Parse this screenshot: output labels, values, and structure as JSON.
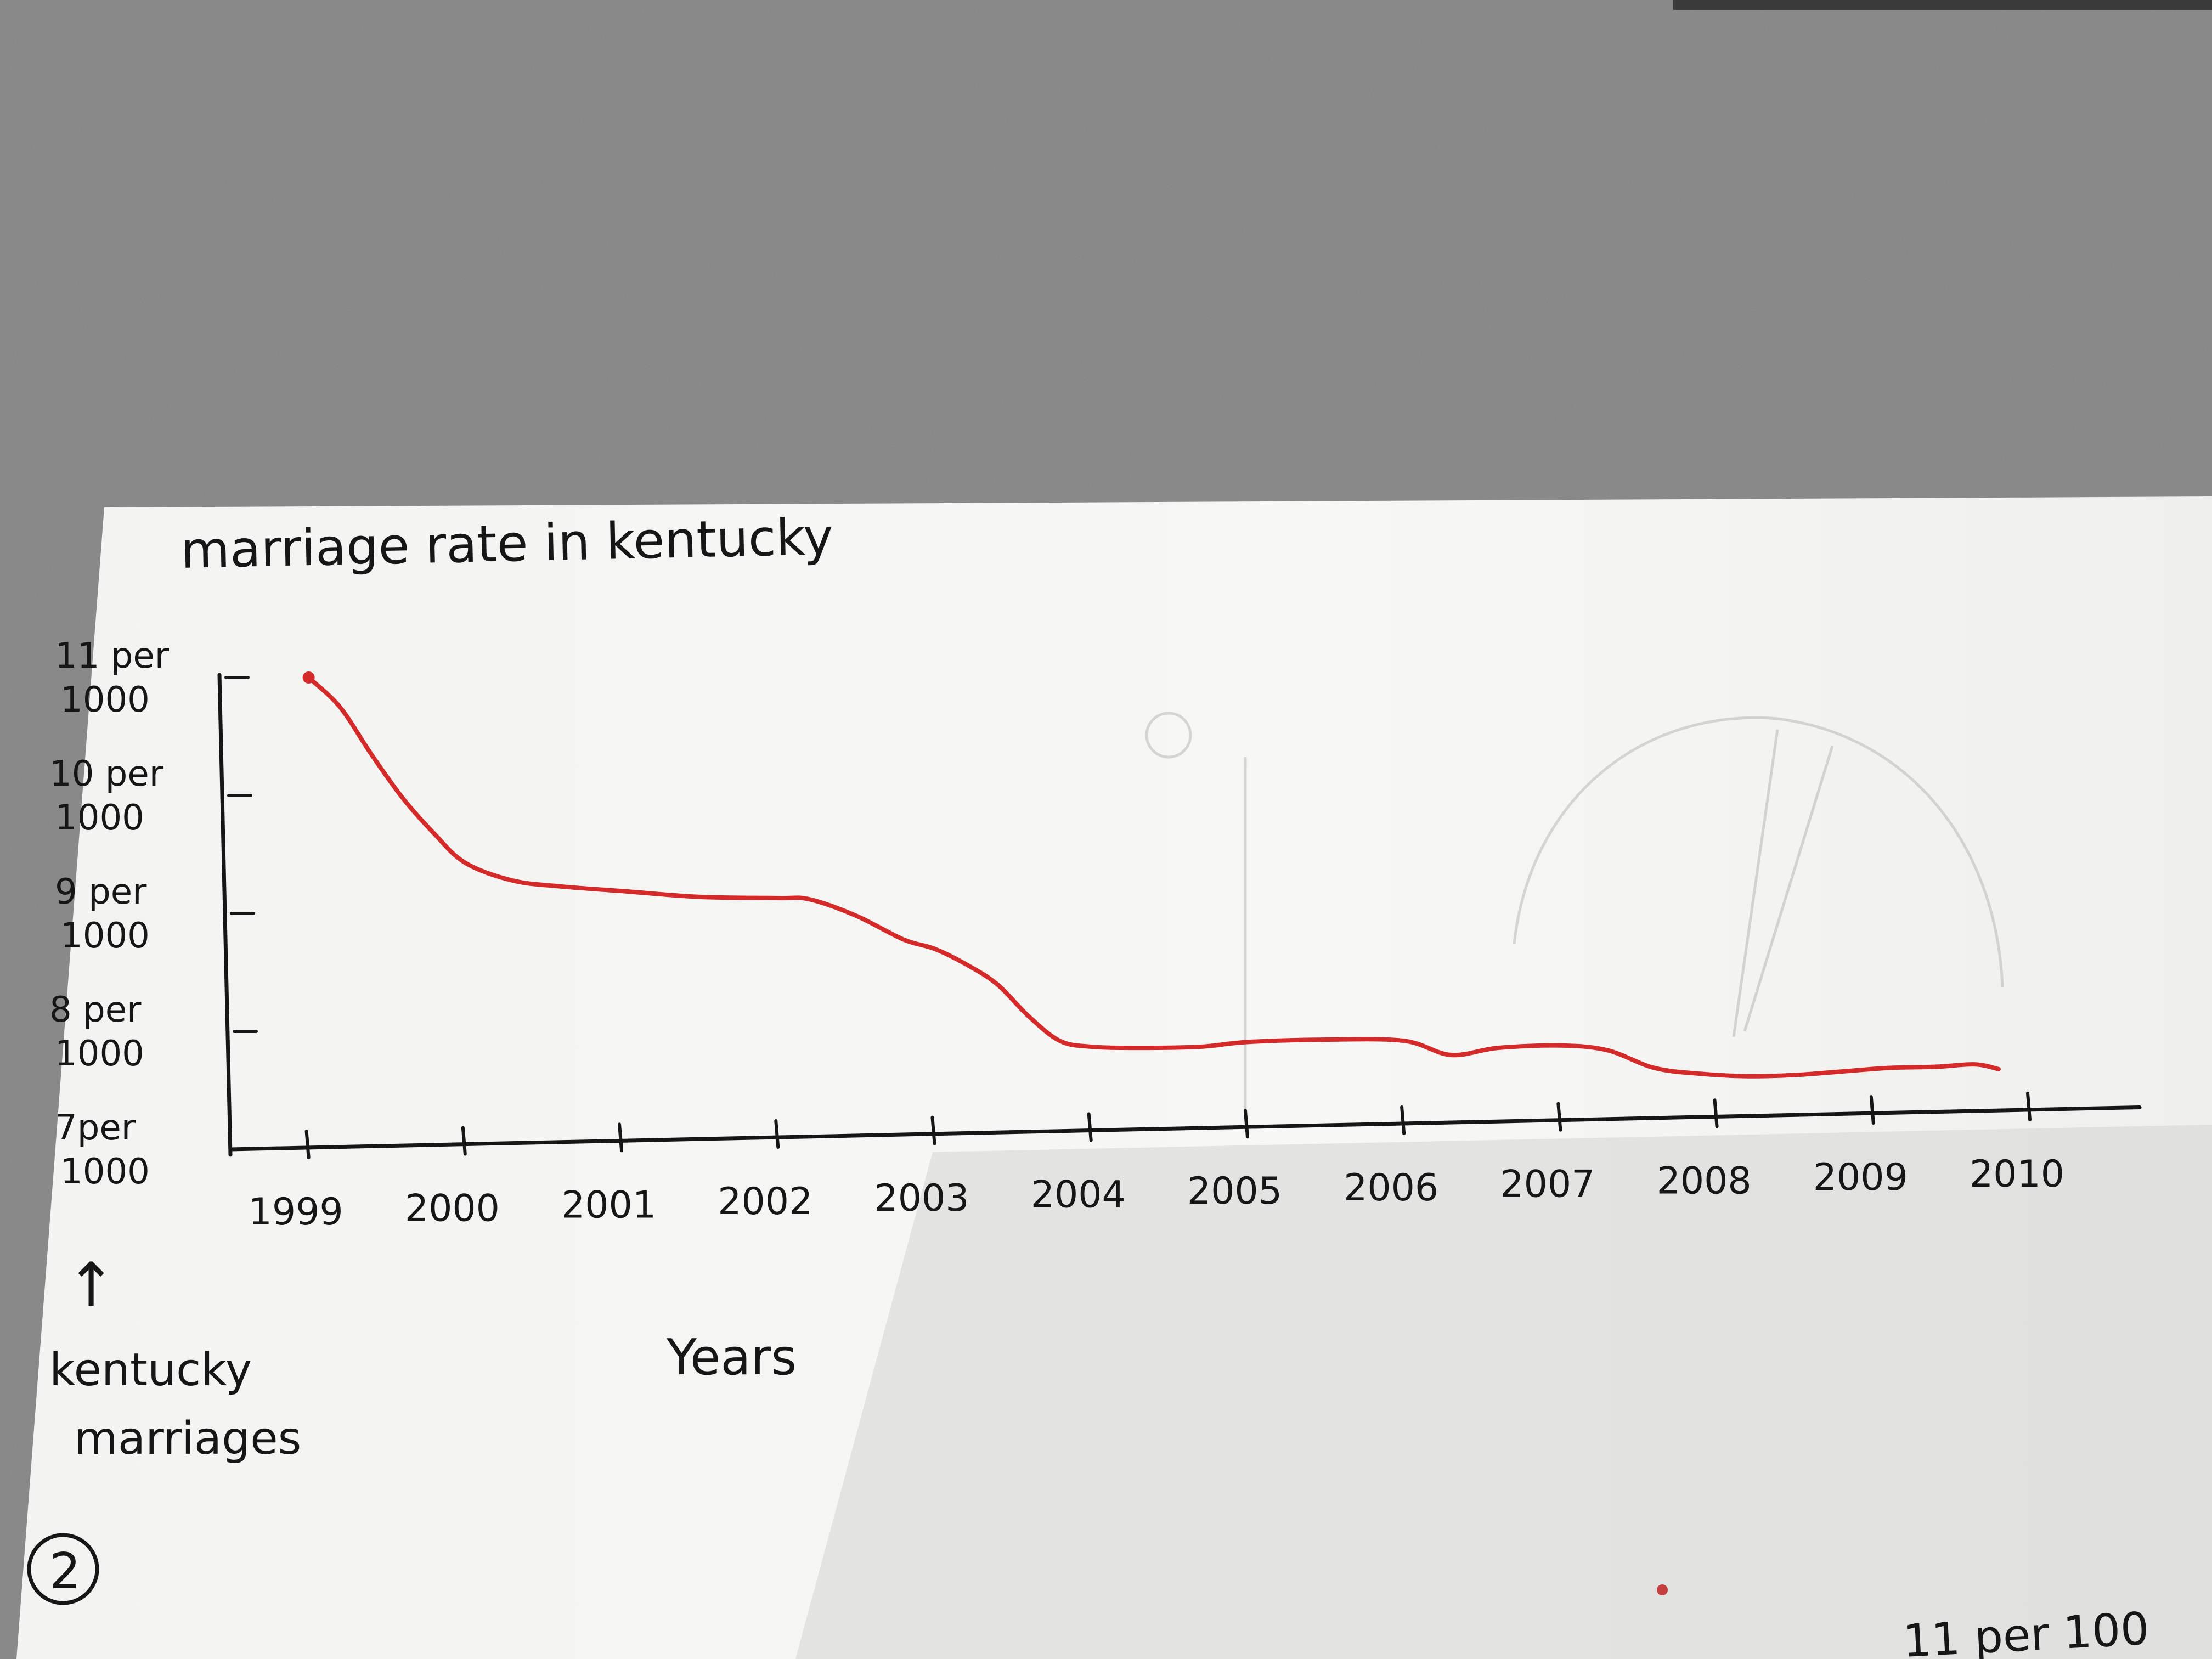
{
  "chart_data": {
    "type": "line",
    "title": "marriage rate in kentucky",
    "xlabel": "Years",
    "ylabel": [
      "kentucky",
      "marriages"
    ],
    "ylabel_arrow": "↑",
    "x_ticks": [
      "1999",
      "2000",
      "2001",
      "2002",
      "2003",
      "2004",
      "2005",
      "2006",
      "2007",
      "2008",
      "2009",
      "2010"
    ],
    "y_ticks": [
      {
        "value": 7,
        "label": [
          "7per",
          "1000"
        ]
      },
      {
        "value": 8,
        "label": [
          "8 per",
          "1000"
        ]
      },
      {
        "value": 9,
        "label": [
          "9 per",
          "1000"
        ]
      },
      {
        "value": 10,
        "label": [
          "10 per",
          "1000"
        ]
      },
      {
        "value": 11,
        "label": [
          "11 per",
          "1000"
        ]
      }
    ],
    "ylim": [
      7,
      11
    ],
    "xlim": [
      1998.5,
      2010
    ],
    "grid": false,
    "line_color": "#d42a2a",
    "series": [
      {
        "x": [
          1999.0,
          1999.2,
          1999.4,
          1999.6,
          1999.8,
          2000.0,
          2000.3,
          2000.6,
          2001.0,
          2001.5,
          2002.0,
          2002.2,
          2002.5,
          2002.8,
          2003.0,
          2003.2,
          2003.4,
          2003.6,
          2003.8,
          2004.0,
          2004.3,
          2004.7,
          2005.0,
          2005.5,
          2006.0,
          2006.3,
          2006.6,
          2007.0,
          2007.3,
          2007.6,
          2007.9,
          2008.2,
          2008.5,
          2008.8,
          2009.1,
          2009.4,
          2009.65,
          2009.8
        ],
        "y": [
          11.0,
          10.75,
          10.35,
          9.98,
          9.68,
          9.43,
          9.28,
          9.23,
          9.19,
          9.14,
          9.13,
          9.12,
          8.98,
          8.78,
          8.7,
          8.57,
          8.4,
          8.13,
          7.92,
          7.87,
          7.86,
          7.87,
          7.91,
          7.93,
          7.92,
          7.8,
          7.86,
          7.88,
          7.84,
          7.69,
          7.64,
          7.62,
          7.63,
          7.66,
          7.69,
          7.7,
          7.72,
          7.68
        ]
      }
    ]
  },
  "page_marks": {
    "circled_number": "2",
    "cut_off_note": "11 per 100"
  }
}
